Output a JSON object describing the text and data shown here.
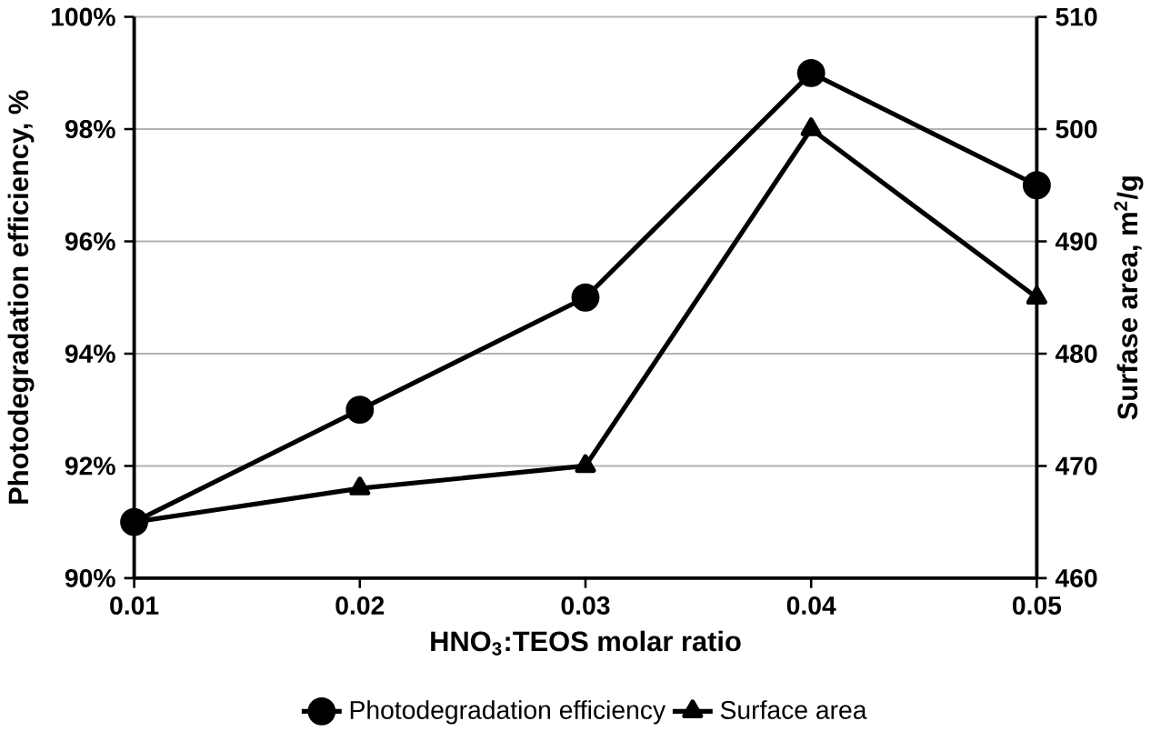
{
  "chart_data": {
    "type": "line",
    "xlabel": "HNO$_{3}$:TEOS molar ratio",
    "ylabel": "Photodegradation efficiency, %",
    "y2label": "Surfase area, m$^{2}$/g",
    "x": [
      0.01,
      0.02,
      0.03,
      0.04,
      0.05
    ],
    "series": [
      {
        "name": "Photodegradation efficiency",
        "color": "#000000",
        "marker": "circle",
        "values": [
          91,
          93,
          95,
          99,
          97
        ]
      },
      {
        "name": "Surface area",
        "color": "#000000",
        "marker": "triangle",
        "axis": "y2",
        "values": [
          465,
          468,
          470,
          500,
          485
        ]
      }
    ],
    "xlim": [
      0.01,
      0.05
    ],
    "xticks": [
      0.01,
      0.02,
      0.03,
      0.04,
      0.05
    ],
    "ylim": [
      90,
      100
    ],
    "yticks": [
      {
        "value": 90,
        "label": "90%"
      },
      {
        "value": 92,
        "label": "92%"
      },
      {
        "value": 94,
        "label": "94%"
      },
      {
        "value": 96,
        "label": "96%"
      },
      {
        "value": 98,
        "label": "98%"
      },
      {
        "value": 100,
        "label": "100%"
      }
    ],
    "y2lim": [
      460,
      510
    ],
    "y2ticks": [
      460,
      470,
      480,
      490,
      500,
      510
    ],
    "grid": "y",
    "legend": "bottom",
    "line_style": "solid"
  }
}
